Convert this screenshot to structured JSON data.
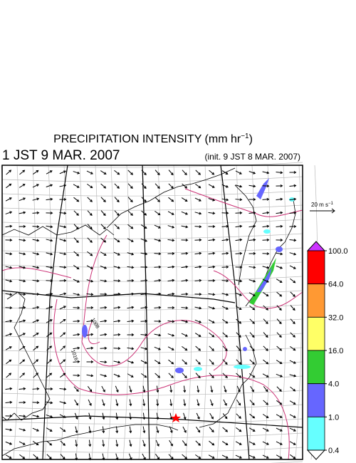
{
  "title": {
    "main": "PRECIPITATION INTENSITY (mm hr",
    "sup": "−1",
    "end": ")"
  },
  "valid_time": "1 JST 9 MAR. 2007",
  "init_time": "(init. 9 JST 8 MAR. 2007)",
  "scale_arrow": {
    "main": "20 m s",
    "sup": "−1"
  },
  "contour_labels": [
    "1008",
    "1016"
  ],
  "colorbar": {
    "levels": [
      {
        "value": 100,
        "label": "100.0"
      },
      {
        "value": 64,
        "label": "64.0"
      },
      {
        "value": 32,
        "label": "32.0"
      },
      {
        "value": 16,
        "label": "16.0"
      },
      {
        "value": 4,
        "label": "4.0"
      },
      {
        "value": 1,
        "label": "1.0"
      },
      {
        "value": 0.4,
        "label": "0.4"
      }
    ],
    "colors": [
      "#ff0000",
      "#ff9933",
      "#ffff66",
      "#33cc33",
      "#6666ff",
      "#66ffff"
    ],
    "over_color": "#cc33ff",
    "under_color": "#ffffff"
  }
}
